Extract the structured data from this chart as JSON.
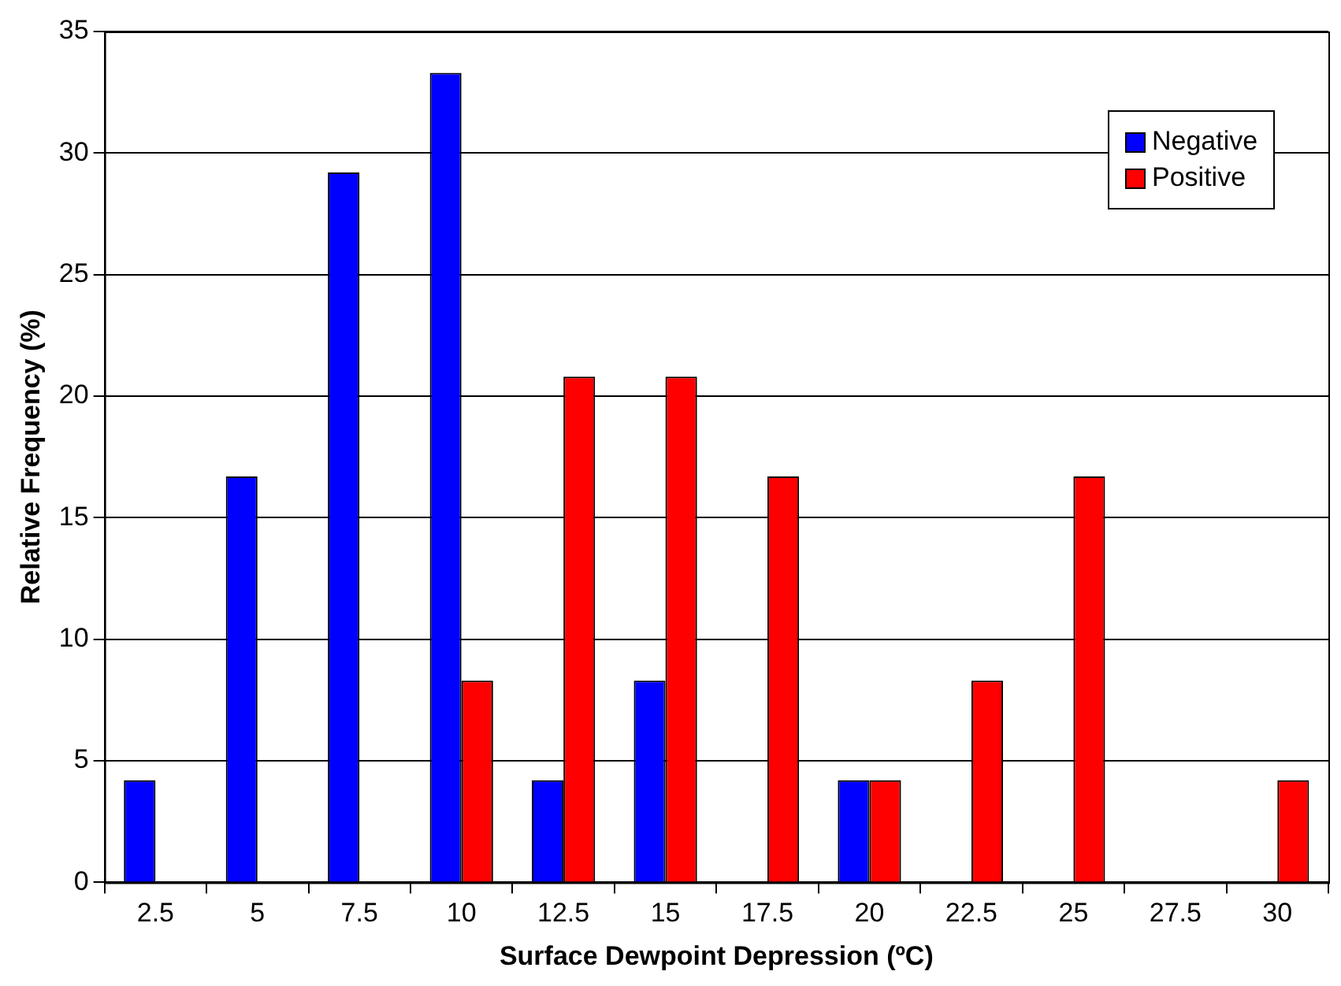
{
  "chart_data": {
    "type": "bar",
    "xlabel": "Surface Dewpoint Depression (ºC)",
    "ylabel": "Relative Frequency (%)",
    "categories": [
      "2.5",
      "5",
      "7.5",
      "10",
      "12.5",
      "15",
      "17.5",
      "20",
      "22.5",
      "25",
      "27.5",
      "30"
    ],
    "series": [
      {
        "name": "Negative",
        "color": "#0000ff",
        "values": [
          4.2,
          16.7,
          29.2,
          33.3,
          4.2,
          8.3,
          0,
          4.2,
          0,
          0,
          0,
          0
        ]
      },
      {
        "name": "Positive",
        "color": "#ff0000",
        "values": [
          0,
          0,
          0,
          8.3,
          20.8,
          20.8,
          16.7,
          4.2,
          8.3,
          16.7,
          0,
          4.2
        ]
      }
    ],
    "ylim": [
      0,
      35
    ],
    "yticks": [
      0,
      5,
      10,
      15,
      20,
      25,
      30,
      35
    ],
    "grid": "y",
    "legend": "top right"
  }
}
